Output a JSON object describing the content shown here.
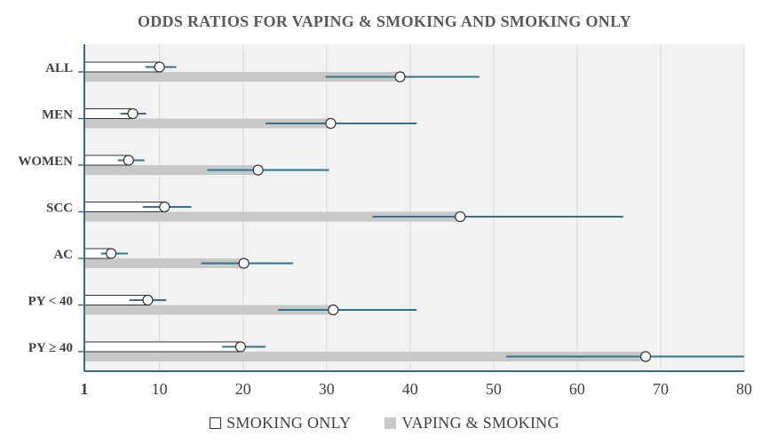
{
  "chart_data": {
    "type": "bar",
    "orientation": "horizontal",
    "title": "ODDS RATIOS FOR VAPING & SMOKING AND SMOKING ONLY",
    "categories": [
      "ALL",
      "MEN",
      "WOMEN",
      "SCC",
      "AC",
      "PY < 40",
      "PY ≥ 40"
    ],
    "series": [
      {
        "name": "SMOKING ONLY",
        "values": [
          10.0,
          6.8,
          6.3,
          10.6,
          4.2,
          8.6,
          19.7
        ],
        "ci_low": [
          8.3,
          5.3,
          5.0,
          8.0,
          3.0,
          6.4,
          17.5
        ],
        "ci_high": [
          12.0,
          8.4,
          8.2,
          13.8,
          6.2,
          10.8,
          22.7
        ],
        "color": "#ffffff",
        "stroke": "#333333"
      },
      {
        "name": "VAPING & SMOKING",
        "values": [
          38.8,
          30.5,
          21.8,
          46.0,
          20.1,
          30.8,
          68.2
        ],
        "ci_low": [
          29.9,
          22.7,
          15.7,
          35.5,
          15.0,
          24.2,
          51.5
        ],
        "ci_high": [
          48.3,
          40.8,
          30.3,
          65.5,
          26.0,
          40.8,
          80.0
        ],
        "color": "#c8c8c8"
      }
    ],
    "xlabel": "",
    "ylabel": "",
    "xlim": [
      1,
      80
    ],
    "xticks": [
      1,
      10,
      20,
      30,
      40,
      50,
      60,
      70,
      80
    ],
    "grid": true,
    "legend": "bottom-center",
    "colors": {
      "plot_background": "#f2f2f2",
      "gridline": "#d9d9d9",
      "axis": "#2f6e8c",
      "ci_line": "#2e7490",
      "marker_fill": "#ffffff",
      "marker_stroke": "#333333"
    }
  }
}
